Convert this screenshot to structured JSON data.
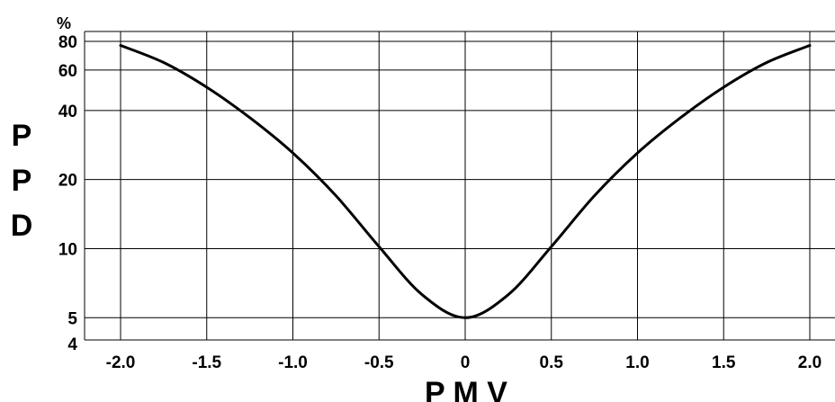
{
  "chart_data": {
    "type": "line",
    "xlabel": "P M V",
    "ylabel_letters": [
      "P",
      "P",
      "D"
    ],
    "y_unit": "%",
    "y_scale": "log",
    "xlim": [
      -2.0,
      2.0
    ],
    "ylim": [
      4,
      80
    ],
    "x_ticks": [
      -2.0,
      -1.5,
      -1.0,
      -0.5,
      0,
      0.5,
      1.0,
      1.5,
      2.0
    ],
    "x_tick_labels": [
      "-2.0",
      "-1.5",
      "-1.0",
      "-0.5",
      "0",
      "0.5",
      "1.0",
      "1.5",
      "2.0"
    ],
    "y_ticks": [
      4,
      5,
      10,
      20,
      40,
      60,
      80
    ],
    "y_tick_labels": [
      "4",
      "5",
      "10",
      "20",
      "40",
      "60",
      "80"
    ],
    "grid": true,
    "line_color": "#000000",
    "series": [
      {
        "x": [
          -2.0,
          -1.75,
          -1.5,
          -1.25,
          -1.0,
          -0.75,
          -0.5,
          -0.25,
          0,
          0.25,
          0.5,
          0.75,
          1.0,
          1.25,
          1.5,
          1.75,
          2.0
        ],
        "values": [
          76.8,
          64.7,
          50.5,
          37.2,
          26.1,
          17.0,
          10.2,
          6.3,
          5.0,
          6.3,
          10.2,
          17.0,
          26.1,
          37.2,
          50.5,
          64.7,
          76.8
        ]
      }
    ]
  }
}
